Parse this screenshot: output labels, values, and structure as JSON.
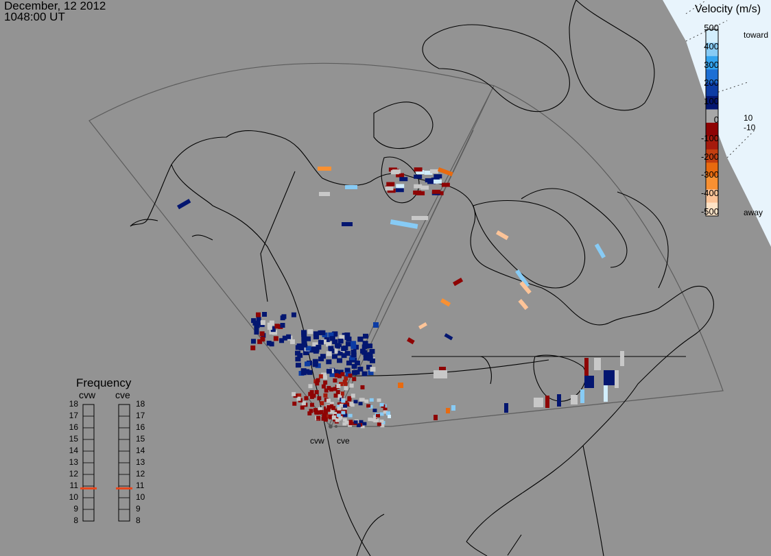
{
  "header": {
    "date": "December, 12 2012",
    "time": "1048:00 UT"
  },
  "legend": {
    "title": "Velocity (m/s)",
    "ticks": [
      "500",
      "400",
      "300",
      "200",
      "100",
      "0",
      "-100",
      "-200",
      "-300",
      "-400",
      "-500"
    ],
    "toward_label": "toward",
    "away_label": "away",
    "pos_threshold": "10",
    "neg_threshold": "-10",
    "colors": [
      "#d2eefd",
      "#87cbf5",
      "#33a4ef",
      "#1d6fd4",
      "#0c3ca4",
      "#031670",
      "#a7a7a7",
      "#8e0404",
      "#a51a0c",
      "#c33e10",
      "#e86a0f",
      "#f89032",
      "#fdc498",
      "#fee3c7"
    ]
  },
  "frequency": {
    "title": "Frequency",
    "radars": [
      {
        "name": "cvw",
        "value": 10.8
      },
      {
        "name": "cve",
        "value": 10.8
      }
    ],
    "labels": [
      "18",
      "17",
      "16",
      "15",
      "14",
      "13",
      "12",
      "11",
      "10",
      "9",
      "8"
    ],
    "min": 8,
    "max": 18,
    "marker_color": "#e8451a"
  },
  "sites": [
    {
      "name": "cvw"
    },
    {
      "name": "cve"
    }
  ],
  "colors": {
    "background": "#939393",
    "ocean_ice": "#e8f4fc",
    "coastline": "#000000",
    "fov_outline": "#5a5a5a",
    "ground_scatter": "#c8c8c8"
  }
}
